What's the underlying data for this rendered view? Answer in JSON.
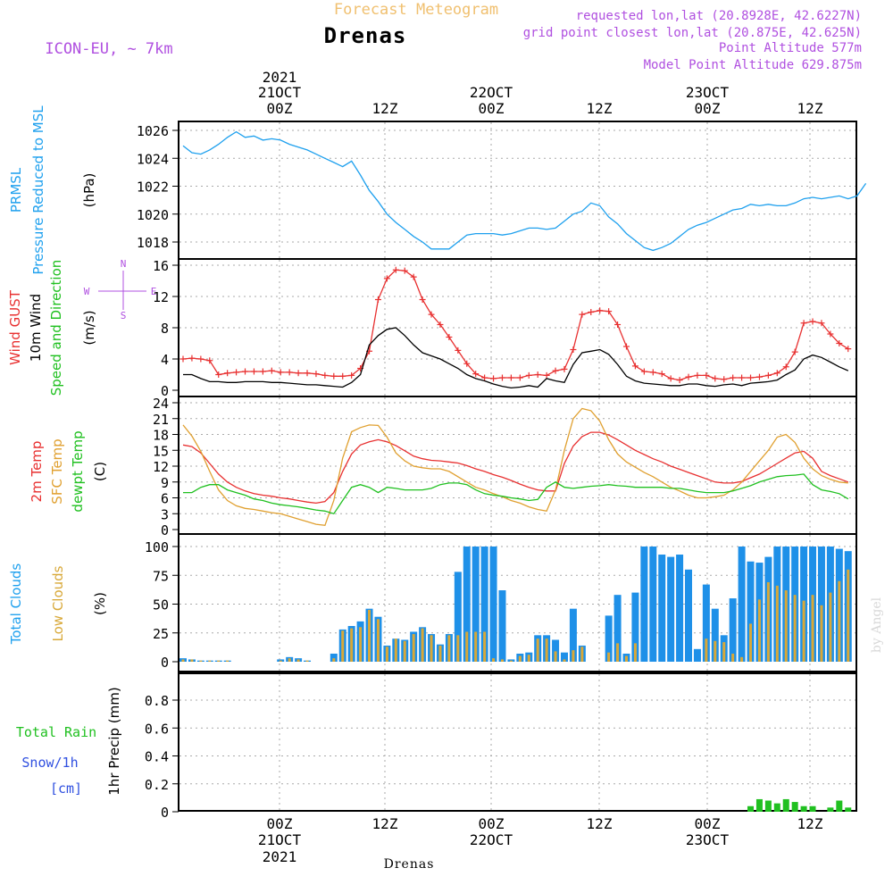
{
  "header": {
    "subtitle": "Forecast Meteogram",
    "station": "Drenas",
    "model": "ICON-EU,  ~ 7km",
    "requested": "requested lon,lat (20.8928E, 42.6227N)",
    "grid_point": "grid point closest lon,lat (20.875E, 42.625N)",
    "point_altitude": "Point Altitude 577m",
    "model_altitude": "Model Point Altitude 629.875m",
    "footer_station": "Drenas",
    "watermark": "by Angel"
  },
  "time_axis": {
    "ticks": [
      "00Z",
      "12Z",
      "00Z",
      "12Z",
      "00Z",
      "12Z"
    ],
    "dates": [
      "21OCT",
      "22OCT",
      "23OCT"
    ],
    "year": "2021"
  },
  "colors": {
    "pressure": "#1ea0ee",
    "gust": "#e83030",
    "wind": "#000000",
    "temp": "#e83030",
    "sfc_temp": "#e0a030",
    "dewpt": "#20c020",
    "total_clouds": "#1e90e8",
    "low_clouds": "#d8a838",
    "rain": "#20c020",
    "header_purple": "#b050e0",
    "header_orange": "#f0c070"
  },
  "panels": {
    "pressure": {
      "labels": [
        "PRMSL",
        "Pressure Reduced to MSL"
      ],
      "unit": "(hPa)",
      "ticks": [
        "1026",
        "1024",
        "1022",
        "1020",
        "1018"
      ]
    },
    "wind": {
      "labels": [
        "Wind GUST",
        "10m Wind",
        "Speed and Direction"
      ],
      "unit": "(m/s)",
      "ticks": [
        "16",
        "12",
        "8",
        "4",
        "0"
      ],
      "compass": {
        "n": "N",
        "s": "S",
        "e": "E",
        "w": "W"
      }
    },
    "temp": {
      "labels": [
        "2m Temp",
        "SFC Temp",
        "dewpt Temp"
      ],
      "unit": "(C)",
      "ticks": [
        "24",
        "21",
        "18",
        "15",
        "12",
        "9",
        "6",
        "3",
        "0"
      ]
    },
    "clouds": {
      "labels": [
        "Total Clouds",
        "Low Clouds"
      ],
      "unit": "(%)",
      "ticks": [
        "100",
        "75",
        "50",
        "25",
        "0"
      ]
    },
    "precip": {
      "labels": [
        "Total  Rain",
        "Snow/1h",
        "[cm]"
      ],
      "unit": "1hr Precip (mm)",
      "ticks": [
        "0.8",
        "0.6",
        "0.4",
        "0.2",
        "0"
      ]
    }
  },
  "chart_data": [
    {
      "type": "line",
      "ylim": [
        1017,
        1026.5
      ],
      "x": [
        0,
        1,
        2,
        3,
        4,
        5,
        6,
        7,
        8,
        9,
        10,
        11,
        12,
        13,
        14,
        15,
        16,
        17,
        18,
        19,
        20,
        21,
        22,
        23,
        24,
        25,
        26,
        27,
        28,
        29,
        30,
        31,
        32,
        33,
        34,
        35,
        36,
        37,
        38,
        39,
        40,
        41,
        42,
        43,
        44,
        45,
        46,
        47,
        48,
        49,
        50,
        51,
        52,
        53,
        54,
        55,
        56,
        57,
        58,
        59,
        60,
        61,
        62,
        63,
        64,
        65,
        66,
        67,
        68,
        69,
        70,
        71,
        72,
        73,
        74,
        75,
        76,
        77
      ],
      "series": [
        {
          "name": "PRMSL",
          "values": [
            1024.9,
            1024.4,
            1024.3,
            1024.6,
            1025.0,
            1025.5,
            1025.9,
            1025.5,
            1025.6,
            1025.3,
            1025.4,
            1025.3,
            1025.0,
            1024.8,
            1024.6,
            1024.3,
            1024.0,
            1023.7,
            1023.4,
            1023.8,
            1022.8,
            1021.7,
            1020.9,
            1020.0,
            1019.4,
            1018.9,
            1018.4,
            1018.0,
            1017.5,
            1017.5,
            1017.5,
            1018.0,
            1018.5,
            1018.6,
            1018.6,
            1018.6,
            1018.5,
            1018.6,
            1018.8,
            1019.0,
            1019.0,
            1018.9,
            1019.0,
            1019.5,
            1020.0,
            1020.2,
            1020.8,
            1020.6,
            1019.8,
            1019.3,
            1018.6,
            1018.1,
            1017.6,
            1017.4,
            1017.6,
            1017.9,
            1018.4,
            1018.9,
            1019.2,
            1019.4,
            1019.7,
            1020.0,
            1020.3,
            1020.4,
            1020.7,
            1020.6,
            1020.7,
            1020.6,
            1020.6,
            1020.8,
            1021.1,
            1021.2,
            1021.1,
            1021.2,
            1021.3,
            1021.1,
            1021.3,
            1022.2
          ]
        }
      ]
    },
    {
      "type": "line",
      "ylim": [
        0,
        16.5
      ],
      "series": [
        {
          "name": "Wind GUST",
          "values": [
            4.0,
            4.1,
            4.0,
            3.8,
            2.0,
            2.2,
            2.3,
            2.4,
            2.4,
            2.4,
            2.5,
            2.3,
            2.3,
            2.2,
            2.2,
            2.1,
            1.9,
            1.8,
            1.8,
            1.9,
            2.8,
            5.0,
            11.6,
            14.3,
            15.4,
            15.3,
            14.5,
            11.6,
            9.7,
            8.4,
            6.8,
            5.1,
            3.4,
            2.1,
            1.6,
            1.5,
            1.6,
            1.6,
            1.6,
            1.9,
            2.0,
            1.9,
            2.5,
            2.7,
            5.2,
            9.7,
            10.0,
            10.2,
            10.1,
            8.4,
            5.6,
            3.1,
            2.4,
            2.3,
            2.1,
            1.5,
            1.3,
            1.7,
            1.9,
            1.9,
            1.5,
            1.4,
            1.6,
            1.6,
            1.6,
            1.7,
            1.9,
            2.2,
            3.0,
            4.9,
            8.6,
            8.8,
            8.6,
            7.2,
            6.0,
            5.3
          ]
        },
        {
          "name": "10m Wind",
          "values": [
            2.0,
            2.0,
            1.5,
            1.1,
            1.1,
            1.0,
            1.0,
            1.1,
            1.1,
            1.1,
            1.0,
            1.0,
            0.9,
            0.8,
            0.7,
            0.7,
            0.6,
            0.5,
            0.4,
            1.0,
            2.0,
            5.8,
            7.0,
            7.8,
            8.0,
            7.0,
            5.8,
            4.8,
            4.4,
            4.0,
            3.4,
            2.8,
            2.0,
            1.5,
            1.2,
            0.8,
            0.5,
            0.3,
            0.4,
            0.6,
            0.4,
            1.5,
            1.2,
            1.0,
            3.3,
            4.8,
            5.0,
            5.2,
            4.6,
            3.3,
            1.8,
            1.2,
            0.9,
            0.8,
            0.7,
            0.6,
            0.6,
            0.8,
            0.8,
            0.6,
            0.5,
            0.7,
            0.8,
            0.6,
            0.9,
            1.0,
            1.1,
            1.3,
            2.0,
            2.6,
            4.0,
            4.5,
            4.2,
            3.6,
            3.0,
            2.5
          ]
        }
      ]
    },
    {
      "type": "line",
      "ylim": [
        0,
        24
      ],
      "series": [
        {
          "name": "2m Temp",
          "values": [
            16.0,
            15.7,
            14.5,
            12.5,
            10.5,
            9.0,
            8.0,
            7.3,
            6.8,
            6.5,
            6.3,
            6.0,
            5.8,
            5.5,
            5.2,
            5.0,
            5.3,
            7.0,
            11.0,
            14.3,
            16.0,
            16.6,
            17.0,
            16.6,
            15.9,
            14.9,
            13.9,
            13.4,
            13.1,
            13.0,
            12.8,
            12.6,
            12.1,
            11.5,
            11.0,
            10.4,
            9.9,
            9.3,
            8.6,
            8.0,
            7.5,
            7.3,
            7.3,
            12.5,
            15.8,
            17.6,
            18.4,
            18.4,
            17.9,
            17.0,
            16.0,
            15.0,
            14.2,
            13.4,
            12.8,
            12.0,
            11.4,
            10.8,
            10.2,
            9.6,
            9.0,
            8.8,
            8.8,
            9.1,
            9.8,
            10.5,
            11.5,
            12.5,
            13.5,
            14.5,
            14.8,
            13.5,
            11.0,
            10.2,
            9.6,
            9.0
          ]
        },
        {
          "name": "SFC Temp",
          "values": [
            19.8,
            17.7,
            14.8,
            11.0,
            7.5,
            5.5,
            4.5,
            4.0,
            3.8,
            3.5,
            3.2,
            3.0,
            2.5,
            2.0,
            1.5,
            1.0,
            0.8,
            5.5,
            13.5,
            18.5,
            19.3,
            19.8,
            19.7,
            17.5,
            14.5,
            13.0,
            12.0,
            11.7,
            11.5,
            11.5,
            11.0,
            10.0,
            9.0,
            8.0,
            7.5,
            6.8,
            6.2,
            5.5,
            5.0,
            4.3,
            3.8,
            3.5,
            7.5,
            15.0,
            21.0,
            22.9,
            22.5,
            20.5,
            17.0,
            14.3,
            12.8,
            11.8,
            10.8,
            10.0,
            9.0,
            8.0,
            7.3,
            6.5,
            6.0,
            6.0,
            6.2,
            6.5,
            7.5,
            9.0,
            11.0,
            13.0,
            15.0,
            17.5,
            18.0,
            16.5,
            13.5,
            11.5,
            10.2,
            9.5,
            9.0,
            8.8
          ]
        },
        {
          "name": "dewpt Temp",
          "values": [
            7.0,
            7.0,
            8.0,
            8.5,
            8.5,
            7.5,
            7.0,
            6.5,
            5.8,
            5.5,
            5.0,
            4.7,
            4.5,
            4.3,
            4.0,
            3.7,
            3.5,
            3.0,
            5.5,
            8.0,
            8.5,
            8.0,
            7.0,
            8.0,
            7.8,
            7.5,
            7.5,
            7.5,
            7.8,
            8.5,
            8.8,
            8.8,
            8.5,
            7.5,
            6.8,
            6.5,
            6.3,
            6.0,
            5.8,
            5.5,
            5.7,
            8.0,
            9.0,
            8.0,
            7.8,
            8.0,
            8.2,
            8.3,
            8.5,
            8.3,
            8.2,
            8.0,
            8.0,
            8.0,
            8.0,
            7.8,
            7.8,
            7.5,
            7.2,
            7.0,
            7.0,
            7.0,
            7.3,
            7.8,
            8.3,
            9.0,
            9.5,
            10.0,
            10.2,
            10.3,
            10.5,
            8.5,
            7.5,
            7.2,
            6.8,
            5.8
          ]
        }
      ]
    },
    {
      "type": "bar",
      "ylim": [
        0,
        100
      ],
      "series": [
        {
          "name": "Total Clouds",
          "values": [
            3,
            2,
            1,
            1,
            1,
            1,
            0,
            0,
            0,
            0,
            0,
            2,
            4,
            3,
            1,
            0,
            0,
            7,
            28,
            31,
            35,
            46,
            39,
            14,
            20,
            19,
            26,
            30,
            24,
            15,
            24,
            78,
            100,
            100,
            100,
            100,
            62,
            2,
            7,
            8,
            23,
            23,
            19,
            8,
            46,
            14,
            0,
            0,
            40,
            58,
            7,
            60,
            100,
            100,
            93,
            91,
            93,
            80,
            11,
            67,
            46,
            23,
            55,
            100,
            87,
            86,
            91,
            100,
            100,
            100,
            100,
            100,
            100,
            100,
            98,
            96
          ]
        },
        {
          "name": "Low Clouds",
          "values": [
            2,
            2,
            1,
            1,
            1,
            1,
            0,
            0,
            0,
            0,
            0,
            1,
            3,
            2,
            1,
            0,
            0,
            3,
            27,
            29,
            30,
            45,
            37,
            13,
            20,
            18,
            24,
            29,
            23,
            14,
            23,
            23,
            26,
            26,
            26,
            3,
            2,
            1,
            5,
            6,
            20,
            20,
            9,
            2,
            10,
            13,
            0,
            0,
            8,
            16,
            5,
            16,
            0,
            0,
            0,
            0,
            0,
            0,
            0,
            20,
            18,
            17,
            7,
            4,
            33,
            54,
            69,
            66,
            62,
            58,
            53,
            58,
            49,
            60,
            70,
            80
          ]
        }
      ]
    },
    {
      "type": "bar",
      "ylim": [
        0,
        0.95
      ],
      "series": [
        {
          "name": "Total Rain",
          "values": [
            0,
            0,
            0,
            0,
            0,
            0,
            0,
            0,
            0,
            0,
            0,
            0,
            0,
            0,
            0,
            0,
            0,
            0,
            0,
            0,
            0,
            0,
            0,
            0,
            0,
            0,
            0,
            0,
            0,
            0,
            0,
            0,
            0,
            0,
            0,
            0,
            0,
            0,
            0,
            0,
            0,
            0,
            0,
            0,
            0,
            0,
            0,
            0,
            0,
            0,
            0,
            0,
            0,
            0,
            0,
            0,
            0,
            0,
            0,
            0,
            0,
            0,
            0,
            0,
            0.04,
            0.09,
            0.08,
            0.06,
            0.09,
            0.07,
            0.04,
            0.04,
            0,
            0.03,
            0.08,
            0.03
          ]
        }
      ]
    }
  ]
}
